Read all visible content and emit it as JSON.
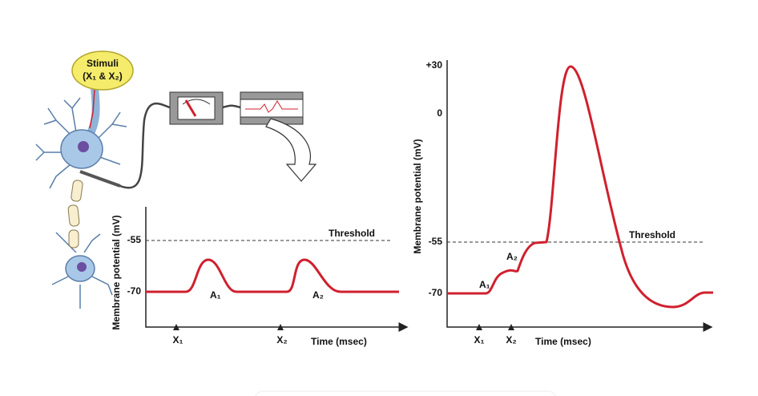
{
  "stimulus": {
    "lines": [
      "Stimuli",
      "(X₁ & X₂)"
    ]
  },
  "left_plot": {
    "y_label": "Membrane potential (mV)",
    "y_ticks": [
      "-55",
      "-70"
    ],
    "threshold": "Threshold",
    "peaks": [
      "A₁",
      "A₂"
    ],
    "stimuli": [
      "X₁",
      "X₂"
    ],
    "x_label": "Time (msec)"
  },
  "right_plot": {
    "y_label": "Membrane potential (mV)",
    "y_ticks": [
      "+30",
      "0",
      "-55",
      "-70"
    ],
    "threshold": "Threshold",
    "peaks": [
      "A₁",
      "A₂"
    ],
    "stimuli": [
      "X₁",
      "X₂"
    ],
    "x_label": "Time (msec)"
  }
}
